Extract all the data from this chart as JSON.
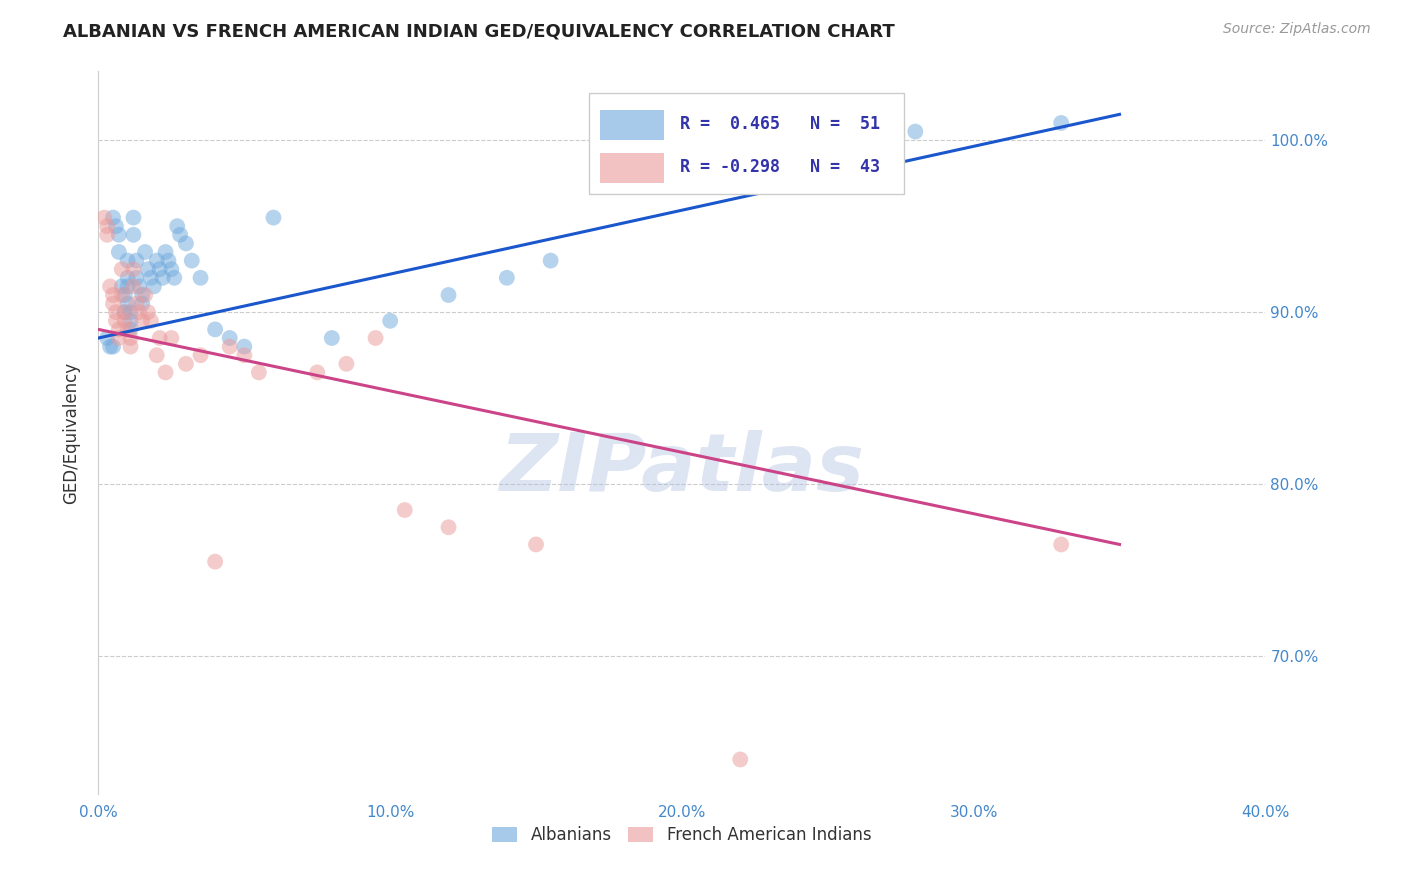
{
  "title": "ALBANIAN VS FRENCH AMERICAN INDIAN GED/EQUIVALENCY CORRELATION CHART",
  "source": "Source: ZipAtlas.com",
  "ylabel": "GED/Equivalency",
  "x_tick_labels": [
    "0.0%",
    "10.0%",
    "20.0%",
    "30.0%",
    "40.0%"
  ],
  "x_tick_values": [
    0.0,
    10.0,
    20.0,
    30.0,
    40.0
  ],
  "y_tick_labels": [
    "70.0%",
    "80.0%",
    "90.0%",
    "100.0%"
  ],
  "y_tick_values": [
    70.0,
    80.0,
    90.0,
    100.0
  ],
  "xlim": [
    0.0,
    40.0
  ],
  "ylim": [
    62.0,
    104.0
  ],
  "legend_r_blue": "R =  0.465",
  "legend_n_blue": "N =  51",
  "legend_r_pink": "R = -0.298",
  "legend_n_pink": "N =  43",
  "blue_color": "#6fa8dc",
  "pink_color": "#ea9999",
  "blue_line_color": "#1a56cc",
  "pink_line_color": "#cc4488",
  "watermark": "ZIPatlas",
  "watermark_color": "#aabbdd",
  "blue_scatter": [
    [
      0.3,
      88.5
    ],
    [
      0.4,
      88.0
    ],
    [
      0.5,
      88.0
    ],
    [
      0.5,
      95.5
    ],
    [
      0.6,
      95.0
    ],
    [
      0.7,
      94.5
    ],
    [
      0.7,
      93.5
    ],
    [
      0.8,
      91.5
    ],
    [
      0.9,
      91.0
    ],
    [
      0.9,
      90.0
    ],
    [
      1.0,
      93.0
    ],
    [
      1.0,
      92.0
    ],
    [
      1.0,
      91.5
    ],
    [
      1.0,
      90.5
    ],
    [
      1.1,
      90.0
    ],
    [
      1.1,
      89.5
    ],
    [
      1.1,
      89.0
    ],
    [
      1.2,
      95.5
    ],
    [
      1.2,
      94.5
    ],
    [
      1.3,
      93.0
    ],
    [
      1.3,
      92.0
    ],
    [
      1.4,
      91.5
    ],
    [
      1.5,
      91.0
    ],
    [
      1.5,
      90.5
    ],
    [
      1.6,
      93.5
    ],
    [
      1.7,
      92.5
    ],
    [
      1.8,
      92.0
    ],
    [
      1.9,
      91.5
    ],
    [
      2.0,
      93.0
    ],
    [
      2.1,
      92.5
    ],
    [
      2.2,
      92.0
    ],
    [
      2.3,
      93.5
    ],
    [
      2.4,
      93.0
    ],
    [
      2.5,
      92.5
    ],
    [
      2.6,
      92.0
    ],
    [
      2.7,
      95.0
    ],
    [
      2.8,
      94.5
    ],
    [
      3.0,
      94.0
    ],
    [
      3.2,
      93.0
    ],
    [
      3.5,
      92.0
    ],
    [
      4.0,
      89.0
    ],
    [
      4.5,
      88.5
    ],
    [
      5.0,
      88.0
    ],
    [
      6.0,
      95.5
    ],
    [
      8.0,
      88.5
    ],
    [
      10.0,
      89.5
    ],
    [
      12.0,
      91.0
    ],
    [
      14.0,
      92.0
    ],
    [
      15.5,
      93.0
    ],
    [
      28.0,
      100.5
    ],
    [
      33.0,
      101.0
    ]
  ],
  "pink_scatter": [
    [
      0.2,
      95.5
    ],
    [
      0.3,
      95.0
    ],
    [
      0.3,
      94.5
    ],
    [
      0.4,
      91.5
    ],
    [
      0.5,
      91.0
    ],
    [
      0.5,
      90.5
    ],
    [
      0.6,
      90.0
    ],
    [
      0.6,
      89.5
    ],
    [
      0.7,
      89.0
    ],
    [
      0.7,
      88.5
    ],
    [
      0.8,
      92.5
    ],
    [
      0.8,
      91.0
    ],
    [
      0.9,
      90.0
    ],
    [
      0.9,
      89.5
    ],
    [
      1.0,
      89.0
    ],
    [
      1.1,
      88.5
    ],
    [
      1.1,
      88.0
    ],
    [
      1.2,
      92.5
    ],
    [
      1.2,
      91.5
    ],
    [
      1.3,
      90.5
    ],
    [
      1.4,
      90.0
    ],
    [
      1.5,
      89.5
    ],
    [
      1.6,
      91.0
    ],
    [
      1.7,
      90.0
    ],
    [
      1.8,
      89.5
    ],
    [
      2.0,
      87.5
    ],
    [
      2.1,
      88.5
    ],
    [
      2.3,
      86.5
    ],
    [
      2.5,
      88.5
    ],
    [
      3.0,
      87.0
    ],
    [
      3.5,
      87.5
    ],
    [
      4.0,
      75.5
    ],
    [
      4.5,
      88.0
    ],
    [
      5.0,
      87.5
    ],
    [
      5.5,
      86.5
    ],
    [
      7.5,
      86.5
    ],
    [
      8.5,
      87.0
    ],
    [
      9.5,
      88.5
    ],
    [
      10.5,
      78.5
    ],
    [
      12.0,
      77.5
    ],
    [
      15.0,
      76.5
    ],
    [
      22.0,
      64.0
    ],
    [
      33.0,
      76.5
    ]
  ],
  "blue_line_x0": 0.0,
  "blue_line_x1": 35.0,
  "blue_line_y0": 88.5,
  "blue_line_y1": 101.5,
  "pink_line_x0": 0.0,
  "pink_line_x1": 35.0,
  "pink_line_y0": 89.0,
  "pink_line_y1": 76.5
}
